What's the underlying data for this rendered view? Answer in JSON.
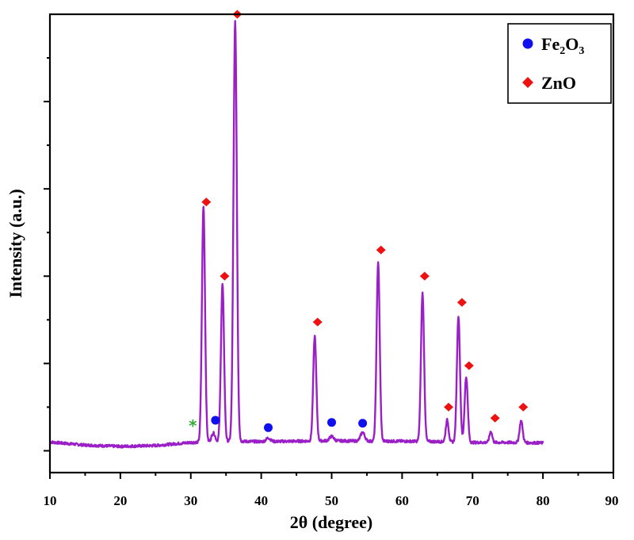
{
  "chart_data": {
    "type": "line",
    "xlabel": "2θ (degree)",
    "ylabel": "Intensity (a.u.)",
    "xlim": [
      10,
      90
    ],
    "ylim": [
      -5,
      100
    ],
    "x_ticks": [
      10,
      20,
      30,
      40,
      50,
      60,
      70,
      80,
      90
    ],
    "y_tick_labels_shown": false,
    "grid": false,
    "legend_position": "top-right",
    "colors": {
      "pattern": "#9b1fc6",
      "fe2o3_marker": "#1010ee",
      "zno_marker": "#ee1111",
      "impurity_marker": "#33aa33"
    },
    "series": [
      {
        "color": "#9b1fc6",
        "baseline": [
          [
            10.0,
            2.0
          ],
          [
            15.0,
            1.3
          ],
          [
            20.0,
            1.0
          ],
          [
            25.0,
            1.2
          ],
          [
            30.0,
            1.9
          ],
          [
            35.0,
            2.2
          ],
          [
            40.0,
            2.1
          ],
          [
            45.0,
            2.2
          ],
          [
            50.0,
            2.3
          ],
          [
            55.0,
            2.2
          ],
          [
            60.0,
            2.2
          ],
          [
            65.0,
            2.1
          ],
          [
            70.0,
            1.9
          ],
          [
            75.0,
            1.9
          ],
          [
            80.0,
            1.8
          ]
        ],
        "peaks": [
          {
            "x": 31.8,
            "height": 54,
            "width": 0.22
          },
          {
            "x": 33.2,
            "height": 2.0,
            "width": 0.25
          },
          {
            "x": 34.5,
            "height": 36,
            "width": 0.22
          },
          {
            "x": 36.3,
            "height": 96,
            "width": 0.24
          },
          {
            "x": 41.0,
            "height": 0.8,
            "width": 0.3
          },
          {
            "x": 47.6,
            "height": 24,
            "width": 0.22
          },
          {
            "x": 50.0,
            "height": 1.0,
            "width": 0.3
          },
          {
            "x": 54.4,
            "height": 2.0,
            "width": 0.3
          },
          {
            "x": 56.6,
            "height": 41,
            "width": 0.22
          },
          {
            "x": 62.9,
            "height": 34,
            "width": 0.22
          },
          {
            "x": 66.4,
            "height": 5,
            "width": 0.2
          },
          {
            "x": 68.0,
            "height": 29,
            "width": 0.22
          },
          {
            "x": 69.1,
            "height": 15,
            "width": 0.22
          },
          {
            "x": 72.6,
            "height": 2.5,
            "width": 0.2
          },
          {
            "x": 76.9,
            "height": 5,
            "width": 0.22
          }
        ]
      }
    ],
    "markers": {
      "zno": [
        [
          32.2,
          57
        ],
        [
          34.8,
          40
        ],
        [
          36.6,
          100
        ],
        [
          48.0,
          29.5
        ],
        [
          57.0,
          46
        ],
        [
          63.2,
          40
        ],
        [
          66.6,
          10
        ],
        [
          68.5,
          34
        ],
        [
          69.5,
          19.5
        ],
        [
          73.2,
          7.5
        ],
        [
          77.2,
          10
        ]
      ],
      "fe2o3": [
        [
          33.5,
          7
        ],
        [
          41.0,
          5.3
        ],
        [
          50.0,
          6.5
        ],
        [
          54.4,
          6.3
        ]
      ],
      "impurity": [
        [
          30.3,
          5.7
        ]
      ]
    },
    "legend": [
      {
        "marker": "circle",
        "color": "#1010ee",
        "label_main": "Fe",
        "label_sub1": "2",
        "label_mid": "O",
        "label_sub2": "3"
      },
      {
        "marker": "diamond",
        "color": "#ee1111",
        "label": "ZnO"
      }
    ],
    "impurity_symbol": "*"
  }
}
